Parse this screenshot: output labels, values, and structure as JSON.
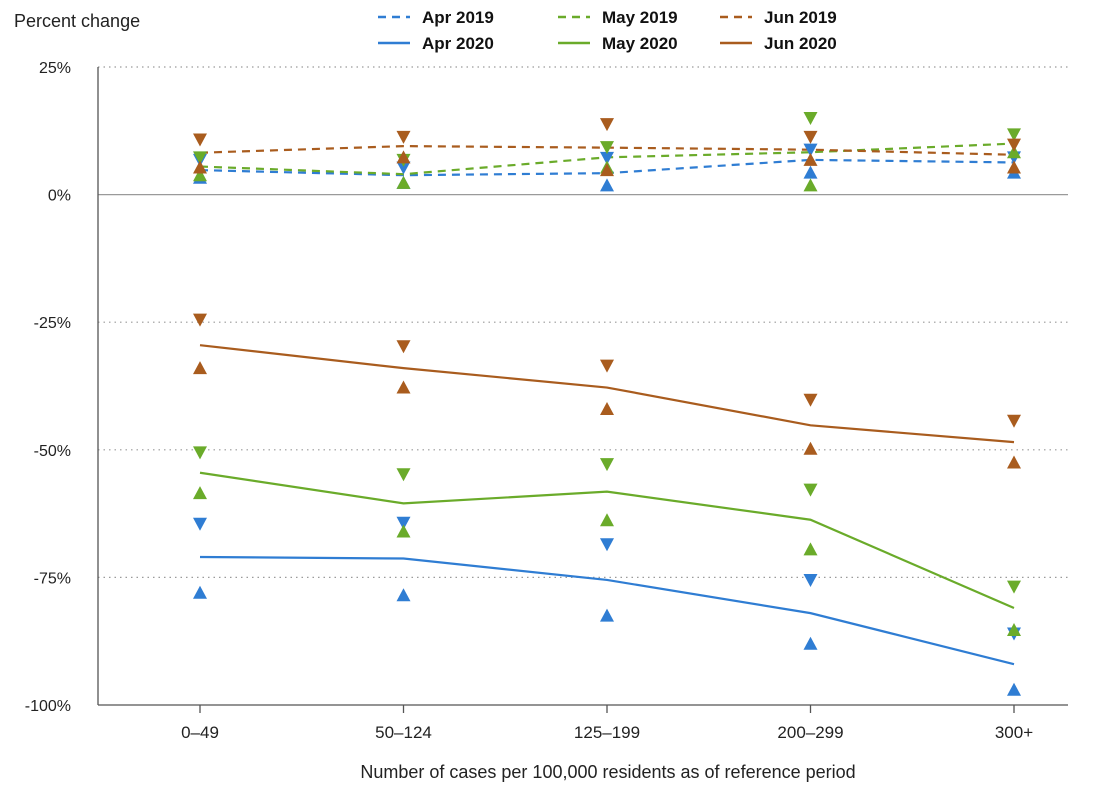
{
  "chart_data": {
    "type": "line",
    "ylabel": "Percent change",
    "xlabel": "Number of cases per 100,000 residents as of reference period",
    "categories": [
      "0–49",
      "50–124",
      "125–199",
      "200–299",
      "300+"
    ],
    "ylim": [
      -100,
      25
    ],
    "yticks": [
      {
        "value": 25,
        "label": "25%"
      },
      {
        "value": 0,
        "label": "0%"
      },
      {
        "value": -25,
        "label": "-25%"
      },
      {
        "value": -50,
        "label": "-50%"
      },
      {
        "value": -75,
        "label": "-75%"
      },
      {
        "value": -100,
        "label": "-100%"
      }
    ],
    "grid": "horizontal dotted",
    "legend_position": "top",
    "series": [
      {
        "name": "Apr 2019",
        "color": "#2f7dd3",
        "dash": "dashed",
        "values": [
          4.8,
          3.8,
          4.2,
          6.8,
          6.3
        ],
        "upper": [
          6.8,
          5.3,
          7.2,
          8.8,
          7.3
        ],
        "lower": [
          3.3,
          2.3,
          1.8,
          4.3,
          4.3
        ]
      },
      {
        "name": "May 2019",
        "color": "#6aab2a",
        "dash": "dashed",
        "values": [
          5.5,
          4.0,
          7.3,
          8.3,
          10.0
        ],
        "upper": [
          7.3,
          6.8,
          9.3,
          15.0,
          11.8
        ],
        "lower": [
          3.8,
          2.3,
          5.3,
          1.8,
          8.3
        ]
      },
      {
        "name": "Jun 2019",
        "color": "#a95c1e",
        "dash": "dashed",
        "values": [
          8.2,
          9.5,
          9.2,
          8.8,
          7.8
        ],
        "upper": [
          10.8,
          11.3,
          13.8,
          11.3,
          9.8
        ],
        "lower": [
          5.3,
          7.3,
          4.8,
          6.8,
          5.3
        ]
      },
      {
        "name": "Apr 2020",
        "color": "#2f7dd3",
        "dash": "solid",
        "values": [
          -71.0,
          -71.3,
          -75.5,
          -82.0,
          -92.0
        ],
        "upper": [
          -64.5,
          -64.3,
          -68.5,
          -75.5,
          -86.0
        ],
        "lower": [
          -78.0,
          -78.5,
          -82.5,
          -88.0,
          -97.0
        ]
      },
      {
        "name": "May 2020",
        "color": "#6aab2a",
        "dash": "solid",
        "values": [
          -54.5,
          -60.5,
          -58.2,
          -63.7,
          -81.0
        ],
        "upper": [
          -50.5,
          -54.8,
          -52.8,
          -57.8,
          -76.8
        ],
        "lower": [
          -58.5,
          -66.0,
          -63.8,
          -69.5,
          -85.3
        ]
      },
      {
        "name": "Jun 2020",
        "color": "#a95c1e",
        "dash": "solid",
        "values": [
          -29.5,
          -34.0,
          -37.8,
          -45.2,
          -48.5
        ],
        "upper": [
          -24.5,
          -29.7,
          -33.5,
          -40.2,
          -44.3
        ],
        "lower": [
          -34.0,
          -37.8,
          -42.0,
          -49.8,
          -52.5
        ]
      }
    ],
    "legend_layout": {
      "rows": [
        [
          "Apr 2019",
          "May 2019",
          "Jun 2019"
        ],
        [
          "Apr 2020",
          "May 2020",
          "Jun 2020"
        ]
      ]
    }
  }
}
